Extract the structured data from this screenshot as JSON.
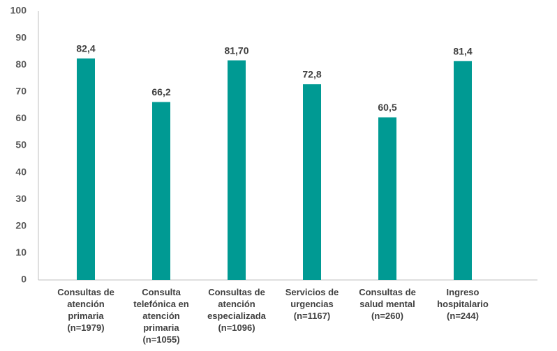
{
  "chart_data": {
    "type": "bar",
    "categories": [
      "Consultas de atención primaria (n=1979)",
      "Consulta telefónica en atención primaria (n=1055)",
      "Consultas de atención especializada (n=1096)",
      "Servicios de urgencias (n=1167)",
      "Consultas de salud mental (n=260)",
      "Ingreso hospitalario (n=244)"
    ],
    "values": [
      82.4,
      66.2,
      81.7,
      72.8,
      60.5,
      81.4
    ],
    "value_labels": [
      "82,4",
      "66,2",
      "81,70",
      "72,8",
      "60,5",
      "81,4"
    ],
    "color": "#009a93",
    "ylim": [
      0,
      100
    ],
    "yticks": [
      0,
      10,
      20,
      30,
      40,
      50,
      60,
      70,
      80,
      90,
      100
    ],
    "grid": false
  }
}
